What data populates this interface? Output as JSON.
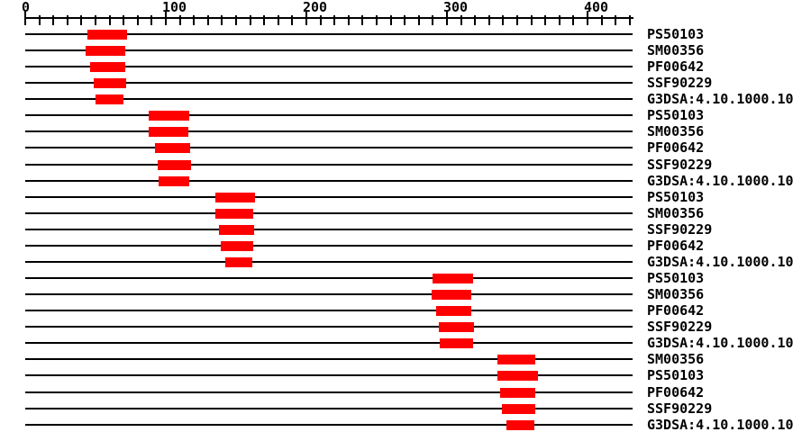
{
  "figure": {
    "background_color": "#ffffff",
    "line_color": "#000000",
    "text_color": "#000000"
  },
  "chart_data": {
    "type": "bar",
    "subtype": "protein-domain-architecture",
    "orientation": "horizontal",
    "grid": false,
    "legend": false,
    "bar_color": "#ff0000",
    "axis": {
      "position": "top",
      "min": 0,
      "max": 433,
      "major_tick_interval": 100,
      "minor_tick_interval": 10,
      "major_tick_labels": [
        "0",
        "100",
        "200",
        "300",
        "400"
      ]
    },
    "rows": [
      {
        "label": "PS50103",
        "start": 44,
        "end": 72
      },
      {
        "label": "SM00356",
        "start": 43,
        "end": 71
      },
      {
        "label": "PF00642",
        "start": 46,
        "end": 71
      },
      {
        "label": "SSF90229",
        "start": 49,
        "end": 72
      },
      {
        "label": "G3DSA:4.10.1000.10",
        "start": 50,
        "end": 70
      },
      {
        "label": "PS50103",
        "start": 88,
        "end": 117
      },
      {
        "label": "SM00356",
        "start": 88,
        "end": 116
      },
      {
        "label": "PF00642",
        "start": 92,
        "end": 117
      },
      {
        "label": "SSF90229",
        "start": 94,
        "end": 118
      },
      {
        "label": "G3DSA:4.10.1000.10",
        "start": 95,
        "end": 117
      },
      {
        "label": "PS50103",
        "start": 135,
        "end": 163
      },
      {
        "label": "SM00356",
        "start": 135,
        "end": 162
      },
      {
        "label": "SSF90229",
        "start": 138,
        "end": 163
      },
      {
        "label": "PF00642",
        "start": 139,
        "end": 162
      },
      {
        "label": "G3DSA:4.10.1000.10",
        "start": 142,
        "end": 161
      },
      {
        "label": "PS50103",
        "start": 290,
        "end": 319
      },
      {
        "label": "SM00356",
        "start": 289,
        "end": 317
      },
      {
        "label": "PF00642",
        "start": 292,
        "end": 317
      },
      {
        "label": "SSF90229",
        "start": 294,
        "end": 319
      },
      {
        "label": "G3DSA:4.10.1000.10",
        "start": 295,
        "end": 319
      },
      {
        "label": "SM00356",
        "start": 336,
        "end": 363
      },
      {
        "label": "PS50103",
        "start": 336,
        "end": 365
      },
      {
        "label": "PF00642",
        "start": 338,
        "end": 363
      },
      {
        "label": "SSF90229",
        "start": 339,
        "end": 363
      },
      {
        "label": "G3DSA:4.10.1000.10",
        "start": 342,
        "end": 362
      }
    ]
  }
}
